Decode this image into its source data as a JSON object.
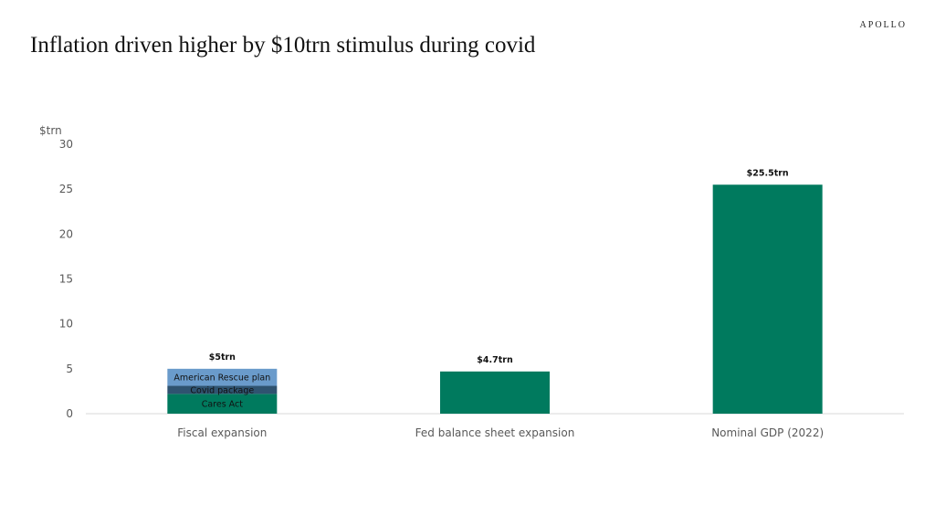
{
  "brand": "APOLLO",
  "title": "Inflation driven higher by $10trn stimulus during covid",
  "chart_data": {
    "type": "bar",
    "ylabel": "$trn",
    "ylim": [
      0,
      30
    ],
    "yticks": [
      0,
      5,
      10,
      15,
      20,
      25,
      30
    ],
    "grid": false,
    "categories": [
      "Fiscal expansion",
      "Fed balance sheet expansion",
      "Nominal GDP (2022)"
    ],
    "bars": [
      {
        "category": "Fiscal expansion",
        "total_label": "$5trn",
        "segments": [
          {
            "name": "Cares Act",
            "value": 2.2,
            "color": "#007A5E"
          },
          {
            "name": "Covid package",
            "value": 0.9,
            "color": "#2F5370"
          },
          {
            "name": "American Rescue plan",
            "value": 1.9,
            "color": "#6A9BCB"
          }
        ]
      },
      {
        "category": "Fed balance sheet expansion",
        "total_label": "$4.7trn",
        "segments": [
          {
            "name": "",
            "value": 4.7,
            "color": "#007A5E"
          }
        ]
      },
      {
        "category": "Nominal GDP (2022)",
        "total_label": "$25.5trn",
        "segments": [
          {
            "name": "",
            "value": 25.5,
            "color": "#007A5E"
          }
        ]
      }
    ]
  }
}
